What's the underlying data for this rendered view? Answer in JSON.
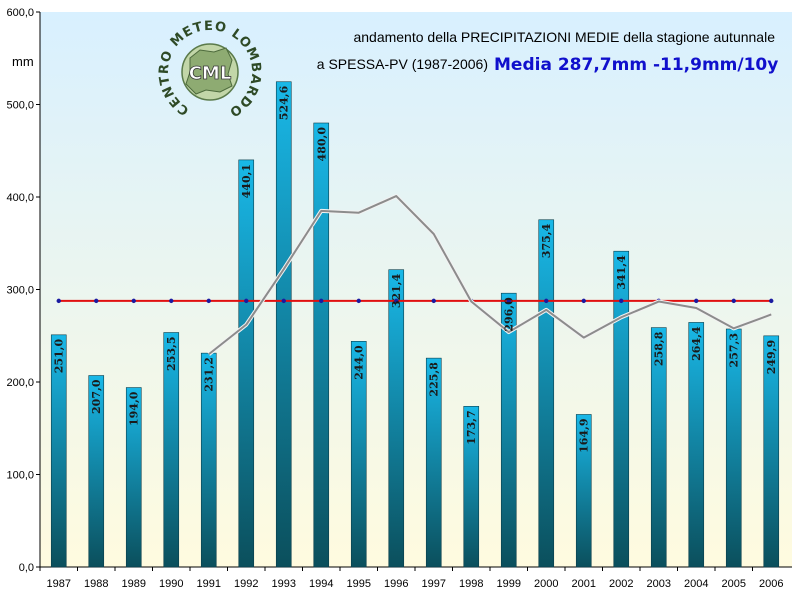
{
  "chart_data": {
    "type": "bar",
    "title": "andamento della PRECIPITAZIONI MEDIE della stagione autunnale",
    "subtitle": "a SPESSA-PV (1987-2006)",
    "highlight": "Media 287,7mm -11,9mm/10y",
    "ylabel": "mm",
    "xlabel": "",
    "ylim": [
      0,
      600
    ],
    "yticks": [
      "0,0",
      "100,0",
      "200,0",
      "300,0",
      "400,0",
      "500,0",
      "600,0"
    ],
    "categories": [
      "1987",
      "1988",
      "1989",
      "1990",
      "1991",
      "1992",
      "1993",
      "1994",
      "1995",
      "1996",
      "1997",
      "1998",
      "1999",
      "2000",
      "2001",
      "2002",
      "2003",
      "2004",
      "2005",
      "2006"
    ],
    "values": [
      251.0,
      207.0,
      194.0,
      253.5,
      231.2,
      440.1,
      524.6,
      480.0,
      244.0,
      321.4,
      225.8,
      173.7,
      296.0,
      375.4,
      164.9,
      341.4,
      258.8,
      264.4,
      257.3,
      249.9
    ],
    "value_labels": [
      "251,0",
      "207,0",
      "194,0",
      "253,5",
      "231,2",
      "440,1",
      "524,6",
      "480,0",
      "244,0",
      "321,4",
      "225,8",
      "173,7",
      "296,0",
      "375,4",
      "164,9",
      "341,4",
      "258,8",
      "264,4",
      "257,3",
      "249,9"
    ],
    "mean_line": {
      "value": 287.7,
      "color": "#e01010",
      "marker_color": "#1a1aa0"
    },
    "moving_average": {
      "color": "#8c8c8c",
      "start_index": 4,
      "values": [
        230,
        262,
        322,
        385,
        383,
        401,
        360,
        287,
        254,
        278,
        248,
        270,
        287,
        280,
        258,
        273
      ]
    },
    "grid": false,
    "colors": {
      "bar_top": "#19b8e8",
      "bar_bottom": "#0b4f5c",
      "bg_top": "#d8f0ff",
      "bg_bottom": "#fffbdf"
    }
  },
  "logo": {
    "ring_text": "CENTRO METEO LOMBARDO",
    "center_text": "CML"
  }
}
